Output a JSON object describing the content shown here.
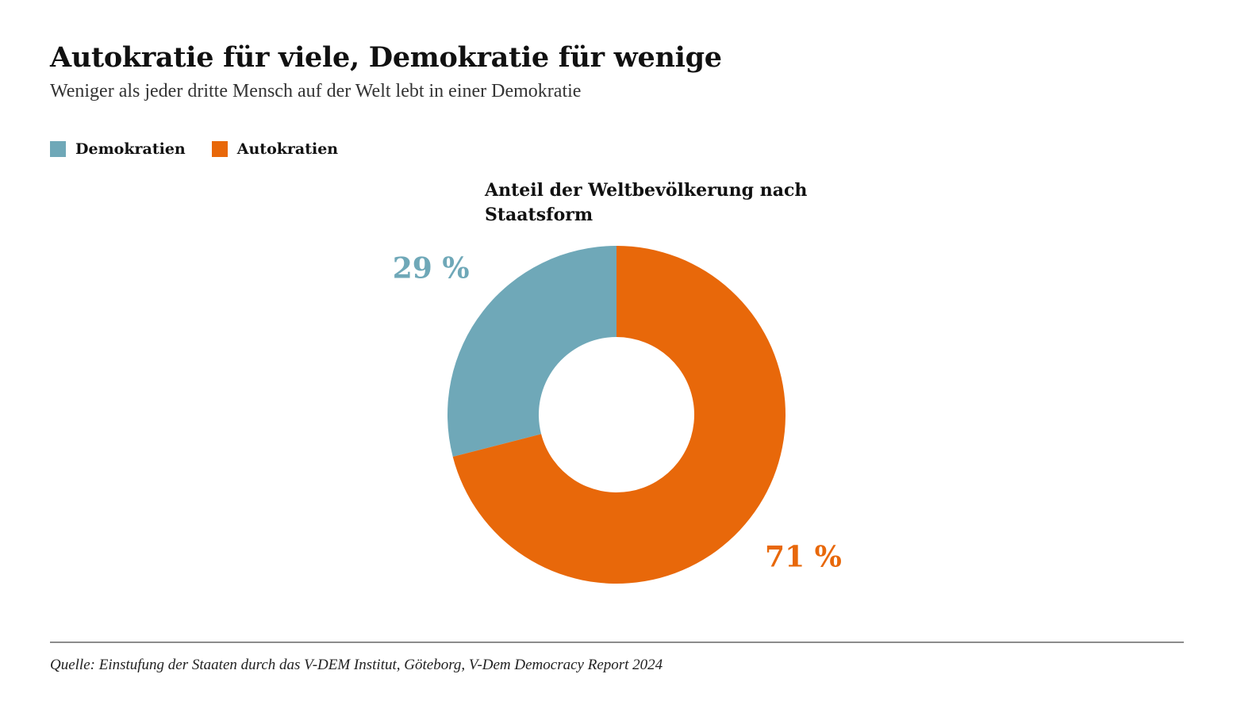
{
  "header": {
    "title": "Autokratie für viele, Demokratie für wenige",
    "subtitle": "Weniger als jeder dritte Mensch auf der Welt lebt in einer Demokratie"
  },
  "legend": [
    {
      "label": "Demokratien",
      "color": "#6fa8b8"
    },
    {
      "label": "Autokratien",
      "color": "#e8680a"
    }
  ],
  "chart_data": {
    "type": "pie",
    "variant": "donut",
    "title": "Anteil der Weltbevölkerung nach Staatsform",
    "categories": [
      "Demokratien",
      "Autokratien"
    ],
    "values": [
      29,
      71
    ],
    "data_labels": [
      "29 %",
      "71 %"
    ],
    "colors": [
      "#6fa8b8",
      "#e8680a"
    ],
    "unit": "%",
    "legend_position": "top-left"
  },
  "footer": {
    "source": "Quelle: Einstufung der Staaten durch das V-DEM Institut, Göteborg, V-Dem Democracy Report 2024"
  }
}
